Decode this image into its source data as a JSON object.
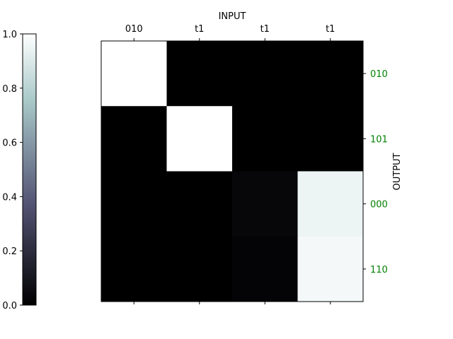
{
  "chart_data": {
    "type": "heatmap",
    "xlabel": "INPUT",
    "ylabel": "OUTPUT",
    "x_categories": [
      "010",
      "t1",
      "t1",
      "t1"
    ],
    "y_categories": [
      "010",
      "101",
      "000",
      "110"
    ],
    "values": [
      [
        1.0,
        0.0,
        0.0,
        0.0
      ],
      [
        0.0,
        1.0,
        0.0,
        0.0
      ],
      [
        0.0,
        0.0,
        0.03,
        0.95
      ],
      [
        0.0,
        0.0,
        0.02,
        0.97
      ]
    ],
    "colormap": "bone",
    "colorbar": {
      "range": [
        0.0,
        1.0
      ],
      "ticks": [
        "0.0",
        "0.2",
        "0.4",
        "0.6",
        "0.8",
        "1.0"
      ]
    },
    "y_tick_color": "#008000"
  }
}
